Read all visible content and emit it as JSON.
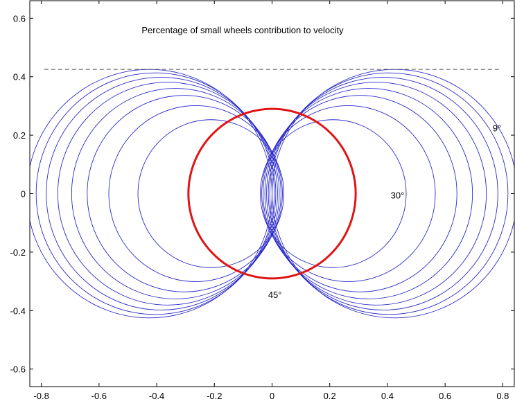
{
  "chart_data": {
    "type": "line",
    "title": "Percentage of small wheels contribution to velocity",
    "xlabel": "",
    "ylabel": "",
    "xlim": [
      -0.84,
      0.84
    ],
    "ylim": [
      -0.66,
      0.66
    ],
    "xticks": [
      -0.8,
      -0.6,
      -0.4,
      -0.2,
      0,
      0.2,
      0.4,
      0.6,
      0.8
    ],
    "xtick_labels": [
      "-0.8",
      "-0.6",
      "-0.4",
      "-0.2",
      "0",
      "0.2",
      "0.4",
      "0.6",
      "0.8"
    ],
    "yticks": [
      -0.6,
      -0.4,
      -0.2,
      0,
      0.2,
      0.4,
      0.6
    ],
    "ytick_labels": [
      "-0.6",
      "-0.4",
      "-0.2",
      "0",
      "0.2",
      "0.4",
      "0.6"
    ],
    "grid": false,
    "box": true,
    "reference_line": {
      "y": 0.425,
      "style": "dashed",
      "color": "#555555",
      "x_range": [
        -0.79,
        0.79
      ]
    },
    "blue_color": "#2a2ac8",
    "red_color": "#e01414",
    "red_circle": {
      "cx": 0,
      "cy": 0,
      "r": 0.29
    },
    "lobes": [
      {
        "cx": 0.425,
        "cy": 0,
        "r": 0.425
      },
      {
        "cx": 0.405,
        "cy": 0,
        "r": 0.413
      },
      {
        "cx": 0.385,
        "cy": 0,
        "r": 0.398
      },
      {
        "cx": 0.362,
        "cy": 0,
        "r": 0.381
      },
      {
        "cx": 0.335,
        "cy": 0,
        "r": 0.36
      },
      {
        "cx": 0.305,
        "cy": 0,
        "r": 0.336
      },
      {
        "cx": 0.265,
        "cy": 0,
        "r": 0.301
      },
      {
        "cx": 0.212,
        "cy": 0,
        "r": 0.253
      }
    ],
    "annotations": [
      {
        "text": "9°",
        "x": 0.78,
        "y": 0.225
      },
      {
        "text": "30°",
        "x": 0.435,
        "y": -0.005
      },
      {
        "text": "45°",
        "x": 0.01,
        "y": -0.345
      }
    ]
  }
}
